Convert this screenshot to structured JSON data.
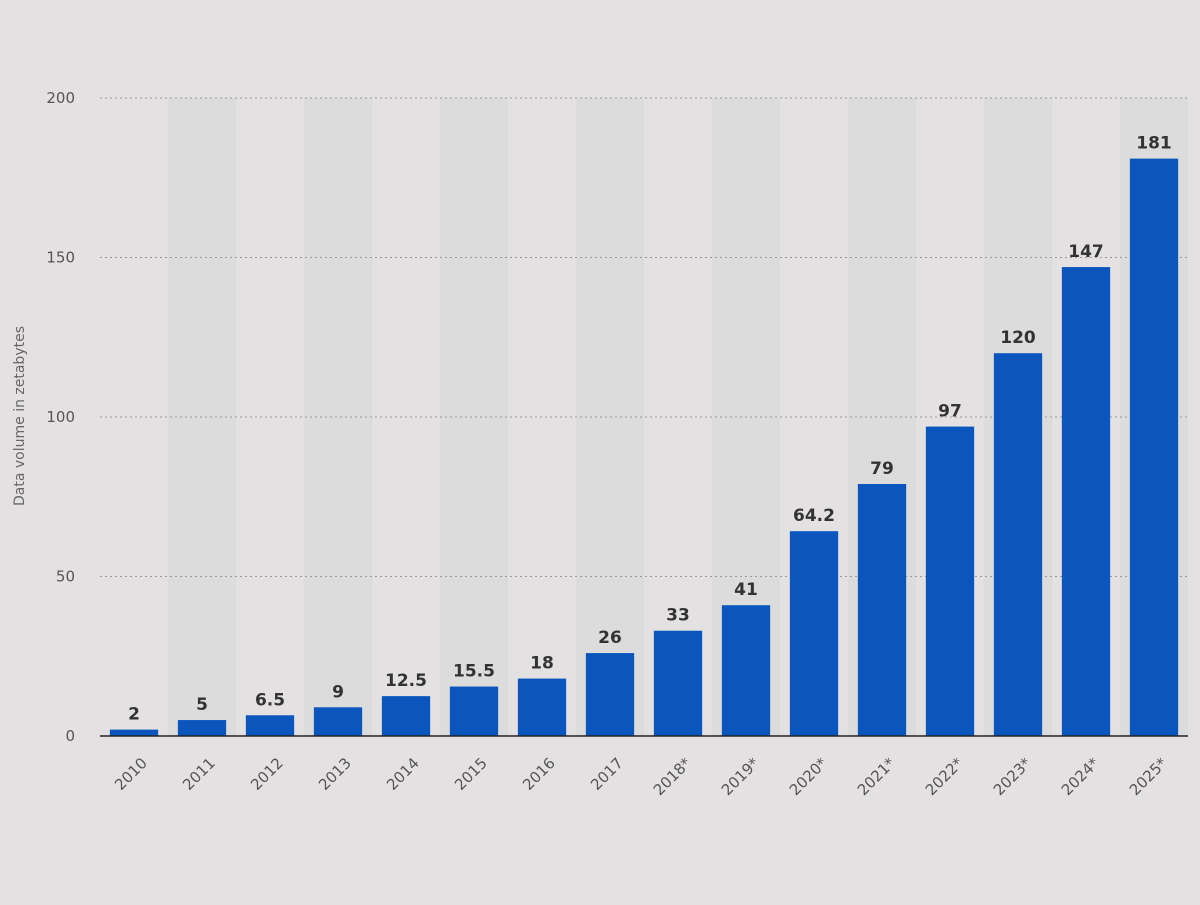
{
  "chart_data": {
    "type": "bar",
    "categories": [
      "2010",
      "2011",
      "2012",
      "2013",
      "2014",
      "2015",
      "2016",
      "2017",
      "2018*",
      "2019*",
      "2020*",
      "2021*",
      "2022*",
      "2023*",
      "2024*",
      "2025*"
    ],
    "values": [
      2,
      5,
      6.5,
      9,
      12.5,
      15.5,
      18,
      26,
      33,
      41,
      64.2,
      79,
      97,
      120,
      147,
      181
    ],
    "value_labels": [
      "2",
      "5",
      "6.5",
      "9",
      "12.5",
      "15.5",
      "18",
      "26",
      "33",
      "41",
      "64.2",
      "79",
      "97",
      "120",
      "147",
      "181"
    ],
    "ylabel": "Data volume in zetabytes",
    "xlabel": "",
    "ylim": [
      0,
      200
    ],
    "yticks": [
      0,
      50,
      100,
      150,
      200
    ],
    "grid": true,
    "bar_color": "#0b56bd",
    "background_color": "#e4e1e2",
    "alternate_band_color": "#dcdcdc"
  }
}
